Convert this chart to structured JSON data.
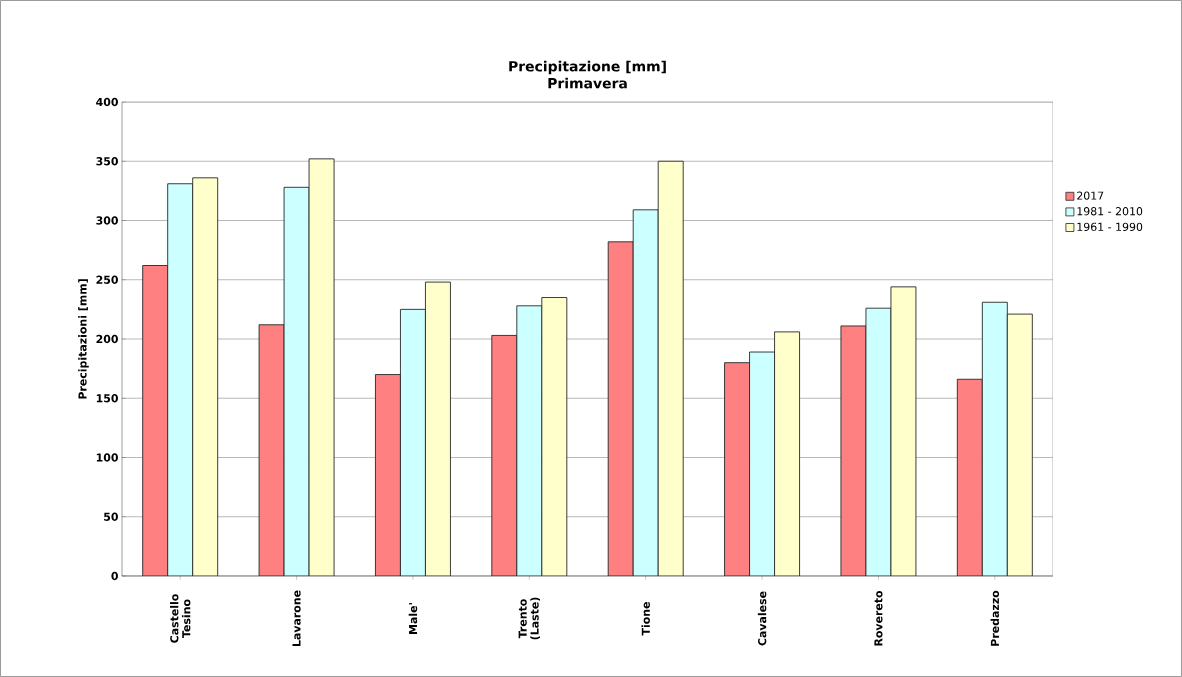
{
  "chart_data": {
    "type": "bar",
    "title": "Precipitazione [mm]",
    "subtitle": "Primavera",
    "ylabel": "Precipitazioni [mm]",
    "categories": [
      "Castello Tesino",
      "Lavarone",
      "Male'",
      "Trento (Laste)",
      "Tione",
      "Cavalese",
      "Rovereto",
      "Predazzo"
    ],
    "series": [
      {
        "name": "2017",
        "color": "#ff8080",
        "values": [
          262,
          212,
          170,
          203,
          282,
          180,
          211,
          166
        ]
      },
      {
        "name": "1981 - 2010",
        "color": "#ccffff",
        "values": [
          331,
          328,
          225,
          228,
          309,
          189,
          226,
          231
        ]
      },
      {
        "name": "1961 - 1990",
        "color": "#ffffcc",
        "values": [
          336,
          352,
          248,
          235,
          350,
          206,
          244,
          221
        ]
      }
    ],
    "ylim": [
      0,
      400
    ],
    "yticks": [
      0,
      50,
      100,
      150,
      200,
      250,
      300,
      350,
      400
    ],
    "grid": "y",
    "legend": "right"
  }
}
